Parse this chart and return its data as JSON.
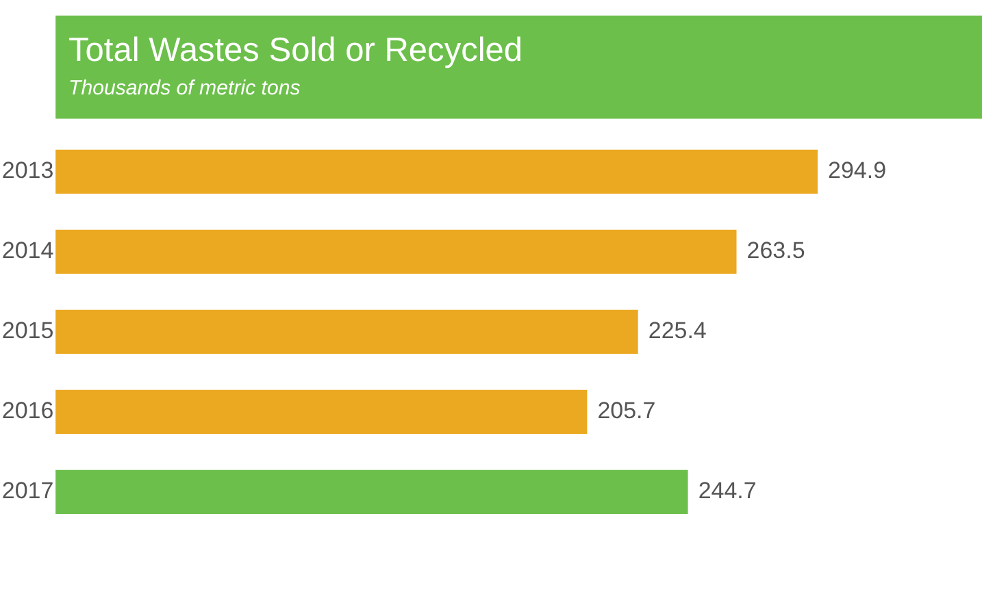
{
  "chart_data": {
    "type": "bar",
    "orientation": "horizontal",
    "title": "Total Wastes Sold or Recycled",
    "subtitle": "Thousands of metric tons",
    "categories": [
      "2013",
      "2014",
      "2015",
      "2016",
      "2017"
    ],
    "values": [
      294.9,
      263.5,
      225.4,
      205.7,
      244.7
    ],
    "colors": [
      "#eba921",
      "#eba921",
      "#eba921",
      "#eba921",
      "#6cbf4b"
    ],
    "data_labels": true,
    "grid": false
  }
}
